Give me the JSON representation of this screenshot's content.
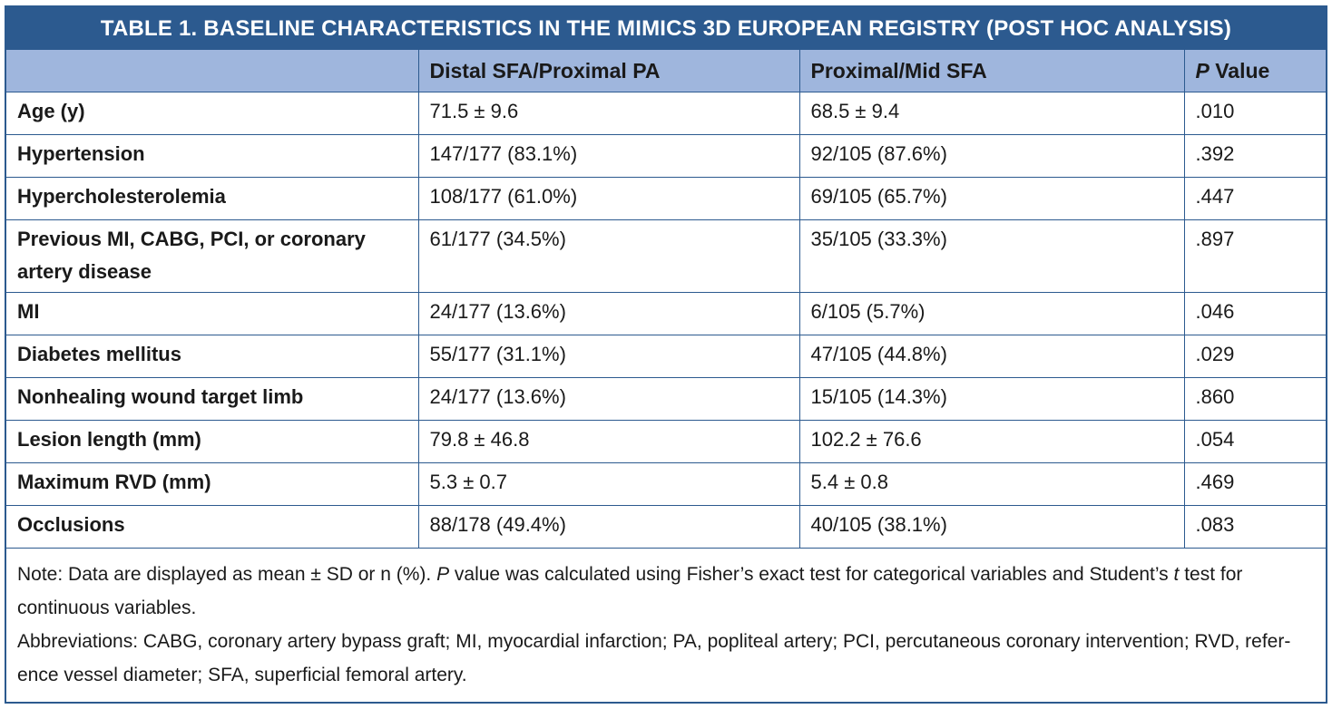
{
  "table": {
    "title": "TABLE 1.  BASELINE CHARACTERISTICS IN THE MIMICS 3D EUROPEAN REGISTRY (POST HOC ANALYSIS)",
    "headers": {
      "col1": "",
      "col2": "Distal SFA/Proximal PA",
      "col3": "Proximal/Mid SFA",
      "col4_italic": "P",
      "col4_rest": " Value"
    },
    "rows": [
      {
        "label": "Age (y)",
        "distal": "71.5 ± 9.6",
        "proximal": "68.5 ± 9.4",
        "p": ".010"
      },
      {
        "label": "Hypertension",
        "distal": "147/177 (83.1%)",
        "proximal": "92/105 (87.6%)",
        "p": ".392"
      },
      {
        "label": "Hypercholesterolemia",
        "distal": "108/177 (61.0%)",
        "proximal": "69/105 (65.7%)",
        "p": ".447"
      },
      {
        "label": "Previous MI, CABG, PCI, or coronary artery disease",
        "distal": "61/177 (34.5%)",
        "proximal": "35/105 (33.3%)",
        "p": ".897"
      },
      {
        "label": "MI",
        "distal": "24/177 (13.6%)",
        "proximal": "6/105 (5.7%)",
        "p": ".046"
      },
      {
        "label": "Diabetes mellitus",
        "distal": "55/177 (31.1%)",
        "proximal": "47/105 (44.8%)",
        "p": ".029"
      },
      {
        "label": "Nonhealing wound target limb",
        "distal": "24/177 (13.6%)",
        "proximal": "15/105 (14.3%)",
        "p": ".860"
      },
      {
        "label": "Lesion length (mm)",
        "distal": "79.8 ± 46.8",
        "proximal": "102.2 ± 76.6",
        "p": ".054"
      },
      {
        "label": "Maximum RVD (mm)",
        "distal": "5.3 ± 0.7",
        "proximal": "5.4 ± 0.8",
        "p": ".469"
      },
      {
        "label": "Occlusions",
        "distal": "88/178 (49.4%)",
        "proximal": "40/105 (38.1%)",
        "p": ".083"
      }
    ],
    "note": {
      "part1": "Note: Data are displayed as mean ± SD or n (%). ",
      "p_italic": "P",
      "part2": " value was calculated using Fisher’s exact test for categorical variables and Student’s ",
      "t_italic": "t",
      "part3": " test for continuous variables."
    },
    "abbreviations": "Abbreviations: CABG, coronary artery bypass graft; MI, myocardial infarction; PA, popliteal artery; PCI, percutaneous coronary intervention; RVD, refer-ence vessel diameter; SFA, superficial femoral artery."
  },
  "colors": {
    "title_bg": "#2c5a8f",
    "header_bg": "#9fb6dd",
    "border": "#2c5a8f"
  }
}
